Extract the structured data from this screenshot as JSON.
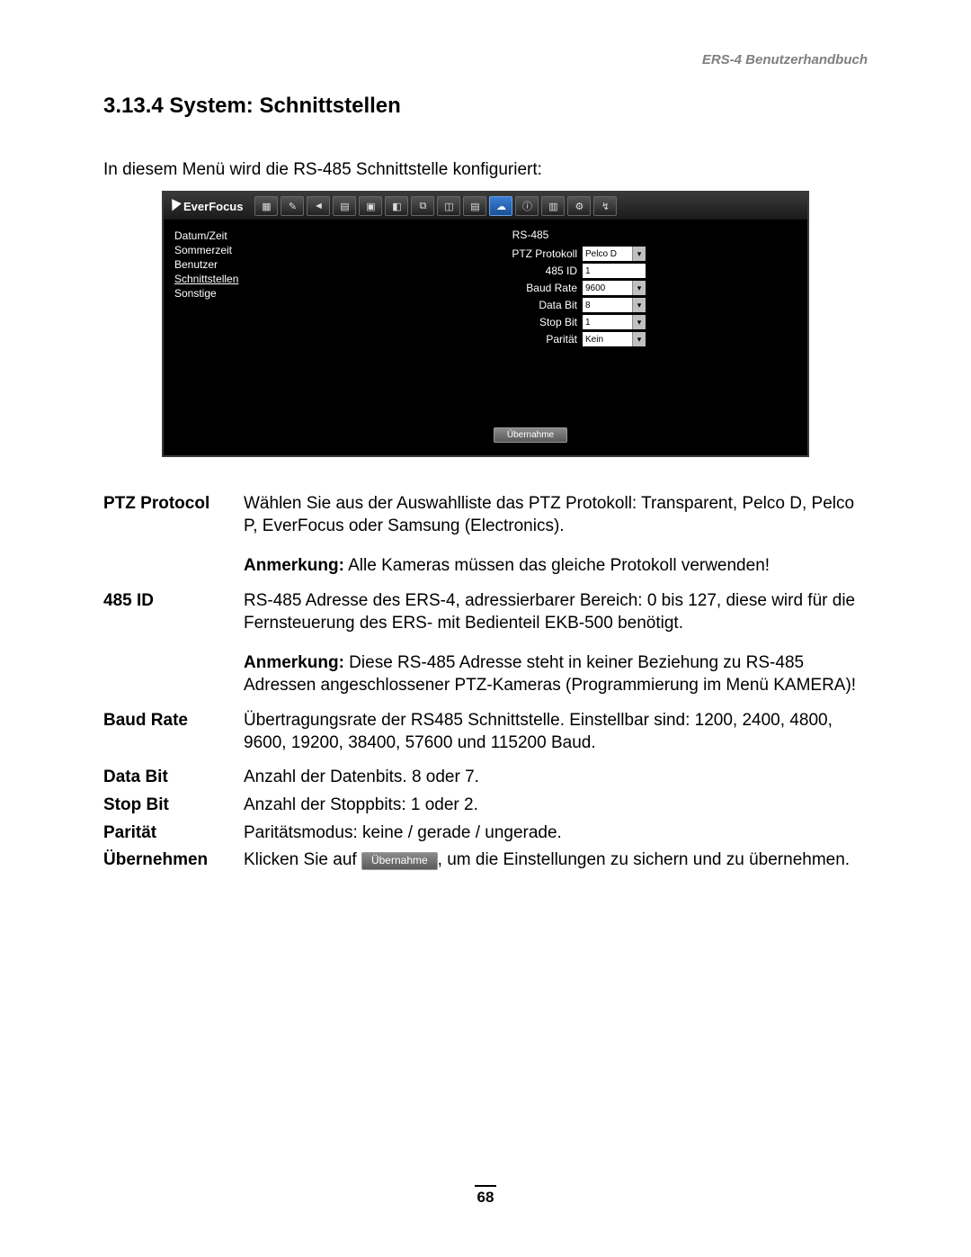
{
  "doc": {
    "header_right": "ERS-4  Benutzerhandbuch",
    "section_number_title": "3.13.4  System: Schnittstellen",
    "intro": "In diesem Menü wird  die RS-485 Schnittstelle konfiguriert:",
    "page_number": "68"
  },
  "screenshot": {
    "brand": "EverFocus",
    "toolbar_icons": [
      "▦",
      "✎",
      "◄",
      "▤",
      "▣",
      "◧",
      "⧉",
      "◫",
      "▤",
      "☁",
      "ⓘ",
      "▥",
      "⚙",
      "↯"
    ],
    "toolbar_active_index": 9,
    "sidebar": [
      "Datum/Zeit",
      "Sommerzeit",
      "Benutzer",
      "Schnittstellen",
      "Sonstige"
    ],
    "sidebar_selected_index": 3,
    "form": {
      "title": "RS-485",
      "rows": [
        {
          "label": "PTZ Protokoll",
          "value": "Pelco D",
          "type": "select"
        },
        {
          "label": "485 ID",
          "value": "1",
          "type": "input"
        },
        {
          "label": "Baud Rate",
          "value": "9600",
          "type": "select"
        },
        {
          "label": "Data Bit",
          "value": "8",
          "type": "select"
        },
        {
          "label": "Stop Bit",
          "value": "1",
          "type": "select"
        },
        {
          "label": "Parität",
          "value": "Kein",
          "type": "select"
        }
      ],
      "apply_label": "Übernahme"
    },
    "colors": {
      "window_bg": "#000000",
      "window_border": "#3a3a3a",
      "text": "#ffffff",
      "control_bg": "#ffffff"
    }
  },
  "definitions": {
    "ptz_protocol": {
      "label": "PTZ Protocol",
      "body": "Wählen Sie aus der Auswahlliste das PTZ Protokoll: Transparent, Pelco D, Pelco P, EverFocus  oder Samsung (Electronics).",
      "note_bold": "Anmerkung:",
      "note_rest": " Alle Kameras müssen das gleiche Protokoll verwenden!"
    },
    "id485": {
      "label": "485 ID",
      "body": "RS-485 Adresse des ERS-4, adressierbarer Bereich: 0 bis 127, diese wird für die Fernsteuerung des ERS- mit Bedienteil EKB-500 benötigt.",
      "note_bold": "Anmerkung:",
      "note_rest": " Diese RS-485 Adresse steht in keiner Beziehung zu RS-485 Adressen angeschlossener PTZ-Kameras (Programmierung im Menü KAMERA)!"
    },
    "baud": {
      "label": "Baud Rate",
      "body": "Übertragungsrate der RS485 Schnittstelle. Einstellbar sind: 1200, 2400, 4800, 9600, 19200, 38400, 57600 und 115200 Baud."
    },
    "databit": {
      "label": "Data Bit",
      "body": "Anzahl der Datenbits. 8 oder 7."
    },
    "stopbit": {
      "label": "Stop Bit",
      "body": "Anzahl der Stoppbits: 1 oder 2."
    },
    "parity": {
      "label": "Parität",
      "body": "Paritätsmodus: keine / gerade / ungerade."
    },
    "apply": {
      "label": "Übernehmen",
      "pre": "Klicken Sie auf ",
      "btn": "Übernahme",
      "post": ", um die Einstellungen zu sichern und zu übernehmen."
    }
  }
}
